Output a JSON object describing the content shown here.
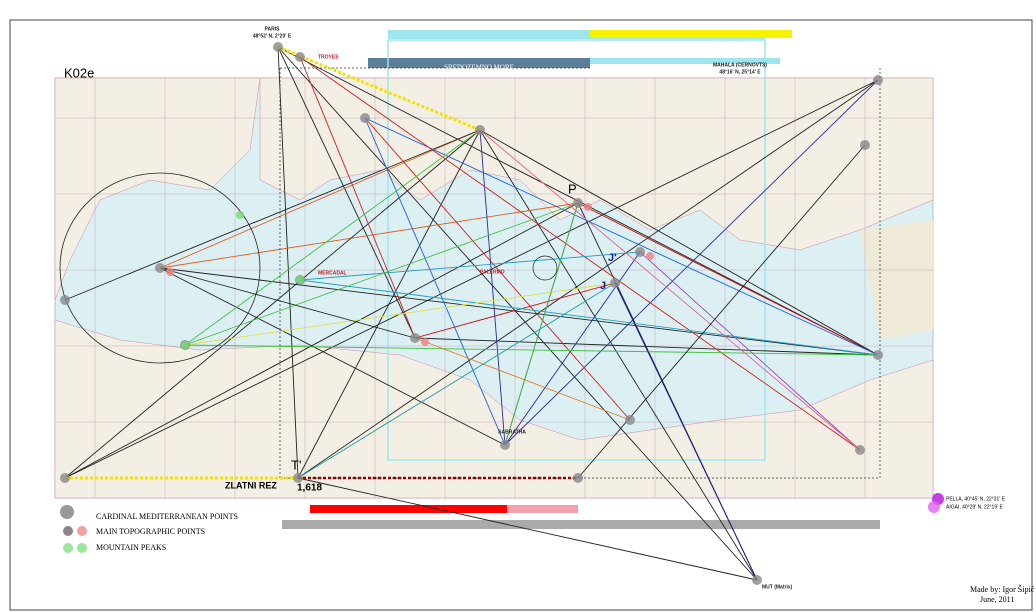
{
  "map": {
    "code": "K02e",
    "sea": "SREDOZEMNO MORE",
    "points": {
      "paris": "PARIS",
      "paris_coord": "48°52' N, 2°20' E",
      "troyes": "TROYES",
      "mahala": "MAHALA (CERNOVTS)",
      "mahala_coord": "48°16' N, 25°14' E",
      "p": "P",
      "j": "J",
      "j2": "J'",
      "t2": "T'",
      "sabratha": "SABRATHA",
      "mercadal": "MERCADAL",
      "palermo": "PALERMO",
      "mut": "MUT (Matrix)"
    },
    "golden_ratio": "1,618",
    "golden_label": "ZLATNI REZ",
    "legend": [
      "CARDINAL MEDITERRANEAN POINTS",
      "MAIN TOPOGRAPHIC POINTS",
      "MOUNTAIN PEAKS"
    ],
    "pella": "PELLA, 40°45' N, 22°31' E",
    "aigai": "AIGAI, 40°29' N, 22°19' E",
    "author": "Made by: Igor Šipić",
    "date": "June, 2011"
  }
}
